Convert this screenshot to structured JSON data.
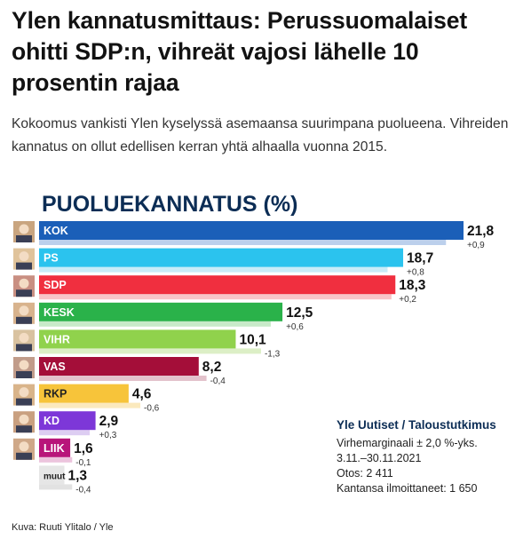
{
  "article": {
    "headline": "Ylen kannatusmittaus: Perussuomalaiset ohitti SDP:n, vihreät vajosi lähelle 10 prosentin rajaa",
    "lead": "Kokoomus vankisti Ylen kyselyssä asemaansa suurimpana puolueena. Vihreiden kannatus on ollut edellisen kerran yhtä alhaalla vuonna 2015.",
    "credit": "Kuva: Ruuti Ylitalo / Yle"
  },
  "chart_data": {
    "type": "bar",
    "orientation": "horizontal",
    "title": "PUOLUEKANNATUS (%)",
    "categories": [
      "KOK",
      "PS",
      "SDP",
      "KESK",
      "VIHR",
      "VAS",
      "RKP",
      "KD",
      "LIIK",
      "muut"
    ],
    "values": [
      21.8,
      18.7,
      18.3,
      12.5,
      10.1,
      8.2,
      4.6,
      2.9,
      1.6,
      1.3
    ],
    "value_labels": [
      "21,8",
      "18,7",
      "18,3",
      "12,5",
      "10,1",
      "8,2",
      "4,6",
      "2,9",
      "1,6",
      "1,3"
    ],
    "change_values": [
      0.9,
      0.8,
      0.2,
      0.6,
      -1.3,
      -0.4,
      -0.6,
      0.3,
      -0.1,
      -0.4
    ],
    "change_labels": [
      "+0,9",
      "+0,8",
      "+0,2",
      "+0,6",
      "-1,3",
      "-0,4",
      "-0,6",
      "+0,3",
      "-0,1",
      "-0,4"
    ],
    "colors": [
      "#1b5fb8",
      "#2bc3ee",
      "#f02f3f",
      "#2ab24a",
      "#90d24c",
      "#a40e39",
      "#f7c43a",
      "#7d37d8",
      "#b8157a",
      "#e6e6e6"
    ],
    "prev_colors": [
      "#bcd0ec",
      "#c9ecf8",
      "#f8c5c8",
      "#c8eac9",
      "#dcefc6",
      "#e3c2cb",
      "#fbe9bd",
      "#ddcdf2",
      "#ecc4dd",
      "#e2e2e2"
    ],
    "photo_tints": [
      "#c9a57f",
      "#e0c39b",
      "#c98f82",
      "#d8b38d",
      "#d9c2a0",
      "#c19c8a",
      "#d9b48a",
      "#c9a080",
      "#cfa888",
      "#ffffff"
    ],
    "source_box": {
      "title": "Yle Uutiset / Taloustutkimus",
      "lines": [
        "Virhemarginaali ± 2,0 %-yks.",
        "3.11.–30.11.2021",
        "Otos: 2 411",
        "Kantansa ilmoittaneet: 1 650"
      ]
    }
  }
}
